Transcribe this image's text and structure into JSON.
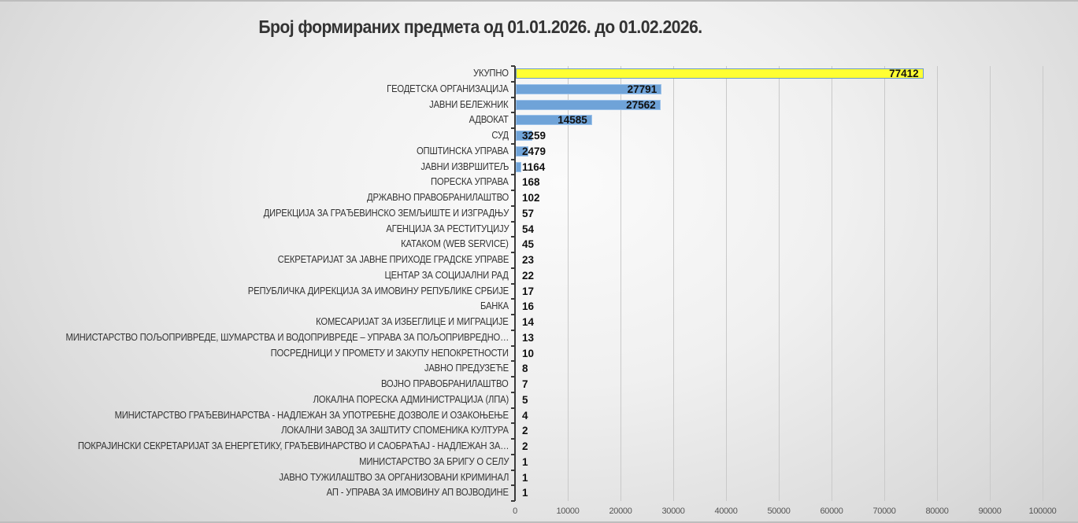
{
  "chart_data": {
    "type": "bar",
    "orientation": "horizontal",
    "title": "Број формираних предмета од 01.01.2026. до 01.02.2026.",
    "xlabel": "",
    "ylabel": "",
    "xlim": [
      0,
      100000
    ],
    "x_ticks": [
      "0",
      "10000",
      "20000",
      "30000",
      "40000",
      "50000",
      "60000",
      "70000",
      "80000",
      "90000",
      "100000"
    ],
    "grid": true,
    "legend": null,
    "colors": {
      "total_bar": "#ffff33",
      "bar": "#6fa3d8",
      "bar_border": "#9cc2ea",
      "total_border": "#6b9bc8"
    },
    "categories": [
      "УКУПНО",
      "ГЕОДЕТСКА ОРГАНИЗАЦИЈА",
      "ЈАВНИ БЕЛЕЖНИК",
      "АДВОКАТ",
      "СУД",
      "ОПШТИНСКА УПРАВА",
      "ЈАВНИ ИЗВРШИТЕЉ",
      "ПОРЕСКА УПРАВА",
      "ДРЖАВНО ПРАВОБРАНИЛАШТВО",
      "ДИРЕКЦИЈА ЗА ГРАЂЕВИНСКО ЗЕМЉИШТЕ И ИЗГРАДЊУ",
      "АГЕНЦИЈА ЗА РЕСТИТУЦИЈУ",
      "КАТАКОМ (WEB SERVICE)",
      "СЕКРЕТАРИЈАТ ЗА ЈАВНЕ ПРИХОДЕ ГРАДСКЕ УПРАВЕ",
      "ЦЕНТАР ЗА СОЦИЈАЛНИ РАД",
      "РЕПУБЛИЧКА ДИРЕКЦИЈА ЗА ИМОВИНУ РЕПУБЛИКЕ СРБИЈЕ",
      "БАНКА",
      "КОМЕСАРИЈАТ ЗА ИЗБЕГЛИЦЕ И МИГРАЦИЈЕ",
      "МИНИСТАРСТВО ПОЉОПРИВРЕДЕ, ШУМАРСТВА И ВОДОПРИВРЕДЕ – УПРАВА ЗА ПОЉОПРИВРЕДНО…",
      "ПОСРЕДНИЦИ У ПРОМЕТУ И ЗАКУПУ НЕПОКРЕТНОСТИ",
      "ЈАВНО ПРЕДУЗЕЋЕ",
      "ВОЈНО ПРАВОБРАНИЛАШТВО",
      "ЛОКАЛНА ПОРЕСКА АДМИНИСТРАЦИЈА (ЛПА)",
      "МИНИСТАРСТВО ГРАЂЕВИНАРСТВА - НАДЛЕЖАН ЗА УПОТРЕБНЕ ДОЗВОЛЕ И ОЗАКОЊЕЊЕ",
      "ЛОКАЛНИ ЗАВОД ЗА ЗАШТИТУ СПОМЕНИКА КУЛТУРА",
      "ПОКРАЈИНСКИ СЕКРЕТАРИЈАТ ЗА ЕНЕРГЕТИКУ, ГРАЂЕВИНАРСТВО И САОБРАЋАЈ - НАДЛЕЖАН ЗА…",
      "МИНИСТАРСТВО ЗА БРИГУ О СЕЛУ",
      "ЈАВНО ТУЖИЛАШТВО ЗА ОРГАНИЗОВАНИ КРИМИНАЛ",
      "АП - УПРАВА ЗА ИМОВИНУ АП ВОЈВОДИНЕ"
    ],
    "values": [
      77412,
      27791,
      27562,
      14585,
      3259,
      2479,
      1164,
      168,
      102,
      57,
      54,
      45,
      23,
      22,
      17,
      16,
      14,
      13,
      10,
      8,
      7,
      5,
      4,
      2,
      2,
      1,
      1,
      1
    ]
  }
}
